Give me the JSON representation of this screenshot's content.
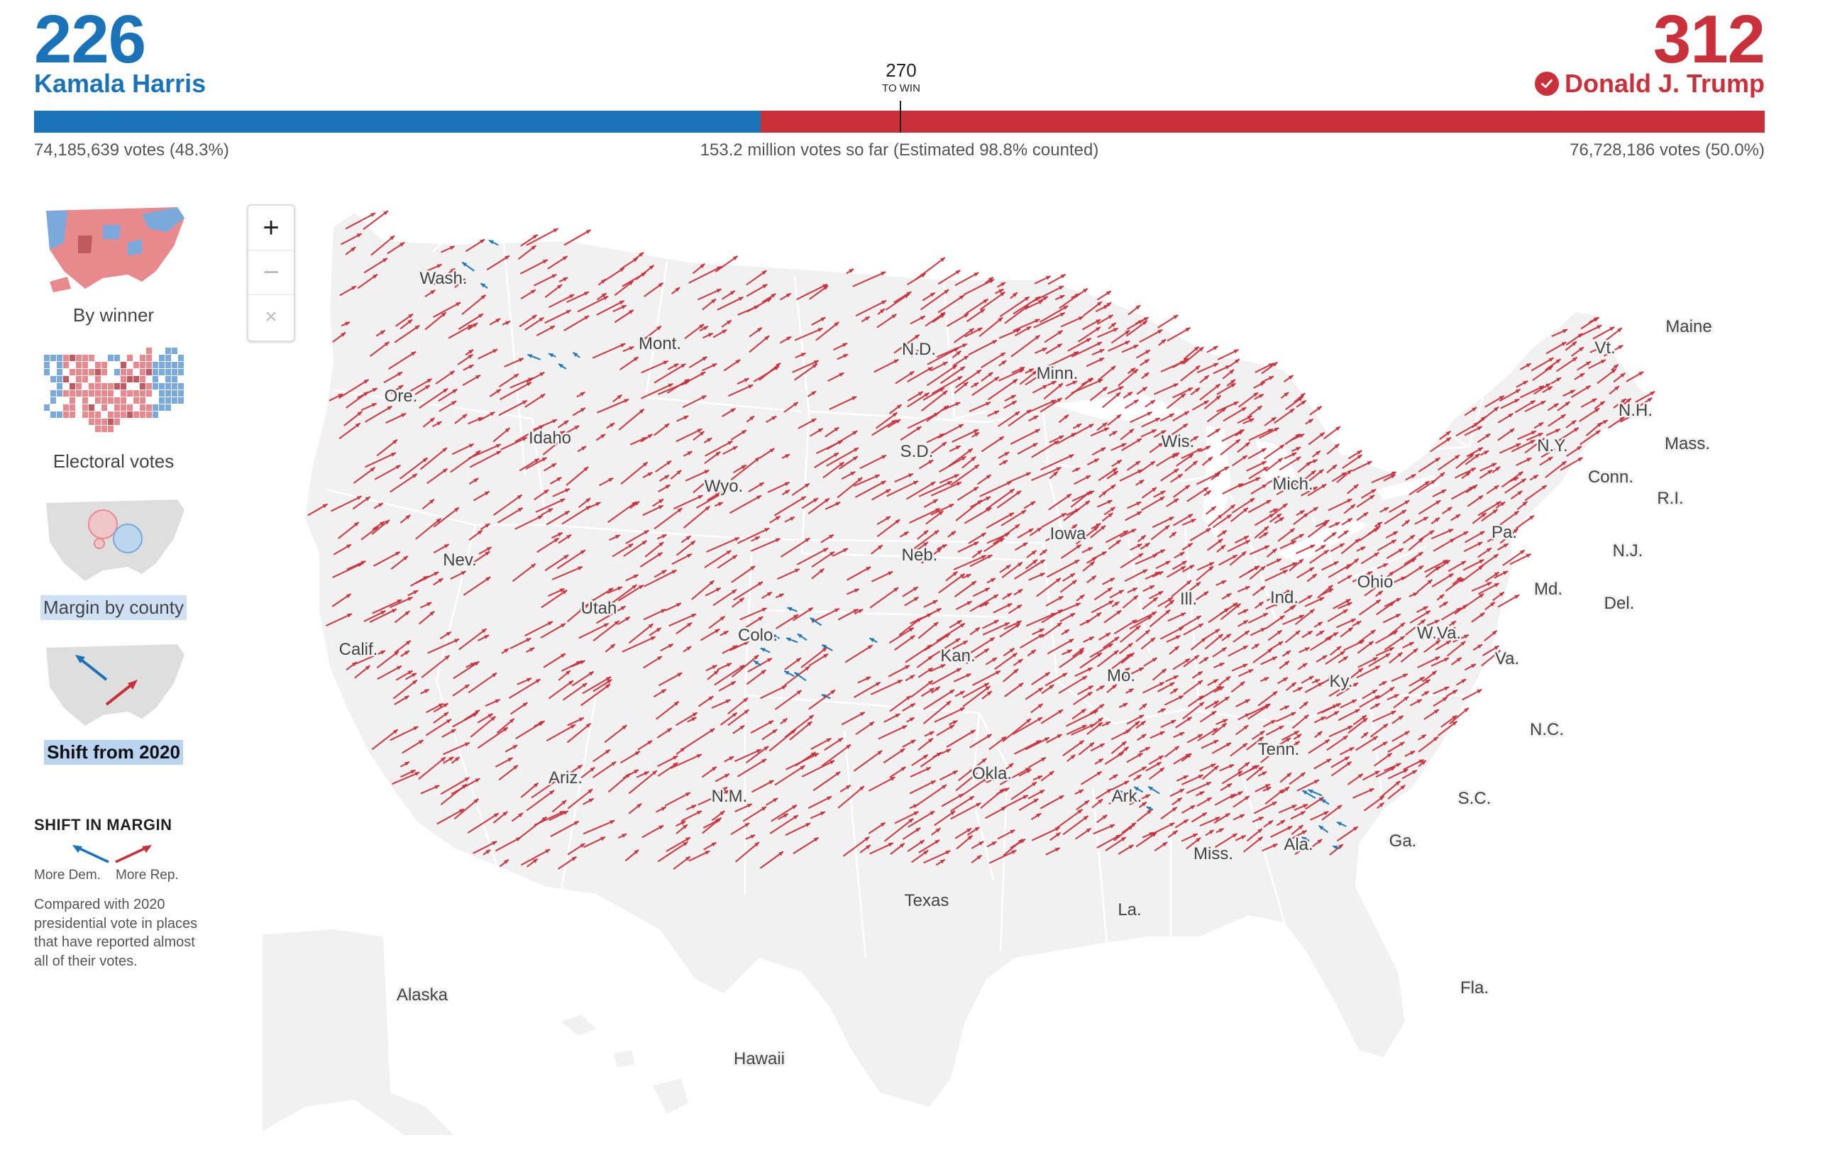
{
  "header": {
    "dem": {
      "electoral_votes": "226",
      "name": "Kamala Harris",
      "popular": "74,185,639 votes (48.3%)",
      "color": "#1a73b8"
    },
    "rep": {
      "electoral_votes": "312",
      "name": "Donald J. Trump",
      "popular": "76,728,186 votes (50.0%)",
      "color": "#c9303a",
      "winner_icon": "check-circle-icon"
    },
    "to_win": {
      "number": "270",
      "label": "TO WIN"
    },
    "total": "153.2 million votes so far (Estimated 98.8% counted)",
    "bar": {
      "dem_share": 0.42,
      "rep_share": 0.58
    }
  },
  "views": [
    {
      "label": "By winner",
      "icon": "winner-map-thumbnail",
      "selected": false
    },
    {
      "label": "Electoral votes",
      "icon": "electoral-cartogram-thumbnail",
      "selected": false
    },
    {
      "label": "Margin by county",
      "icon": "bubble-map-thumbnail",
      "selected": false
    },
    {
      "label": "Shift from 2020",
      "icon": "shift-arrows-thumbnail",
      "selected": true
    }
  ],
  "legend": {
    "title": "SHIFT IN MARGIN",
    "more_dem": "More Dem.",
    "more_rep": "More Rep.",
    "note": "Compared with 2020 presidential vote in places that have reported almost all of their votes.",
    "dem_color": "#1a73b8",
    "rep_color": "#c9303a"
  },
  "zoom": {
    "in": "+",
    "out": "−",
    "reset": "×"
  },
  "map": {
    "land_color": "#f1f1f1",
    "border_color": "#ffffff",
    "state_labels": [
      "Wash.",
      "Mont.",
      "N.D.",
      "Minn.",
      "Ore.",
      "Idaho",
      "S.D.",
      "Wis.",
      "Wyo.",
      "Mich.",
      "Vt.",
      "Maine",
      "N.H.",
      "N.Y.",
      "Mass.",
      "Conn.",
      "R.I.",
      "Nev.",
      "Iowa",
      "Neb.",
      "Pa.",
      "N.J.",
      "Utah",
      "Ohio",
      "Ind.",
      "Ill.",
      "Md.",
      "Del.",
      "Calif.",
      "Colo.",
      "W.Va.",
      "Kan.",
      "Va.",
      "Mo.",
      "Ky.",
      "N.C.",
      "Tenn.",
      "Okla.",
      "Ariz.",
      "N.M.",
      "Ark.",
      "S.C.",
      "Ala.",
      "Miss.",
      "Ga.",
      "Texas",
      "La.",
      "Fla.",
      "Alaska",
      "Hawaii"
    ]
  }
}
